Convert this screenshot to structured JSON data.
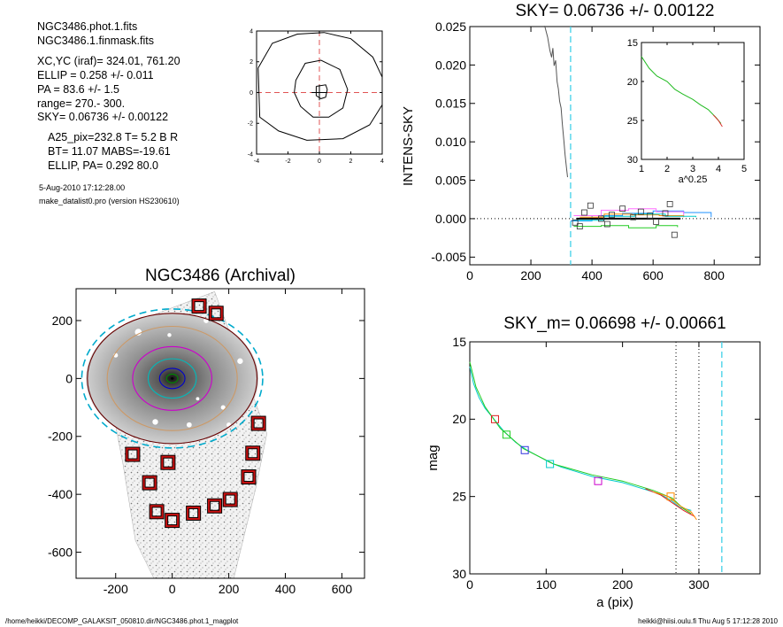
{
  "info": {
    "files": [
      "NGC3486.phot.1.fits",
      "NGC3486.1.finmask.fits"
    ],
    "params": [
      "XC,YC (iraf)=    324.01, 761.20",
      "ELLIP = 0.258 +/- 0.011",
      "PA    =  83.6 +/-   1.5",
      "range=  270.-  300.",
      "SKY= 0.06736 +/- 0.00122"
    ],
    "derived": [
      "A25_pix=232.8   T= 5.2  B R",
      "BT=  11.07    MABS=-19.61",
      "ELLIP, PA= 0.292   80.0"
    ],
    "date": "5-Aug-2010 17:12:28.00",
    "program": "make_datalist0.pro (version HS230610)"
  },
  "footer": {
    "left": "/home/heikki/DECOMP_GALAKSIT_050810.dir/NGC3486.phot.1_magplot",
    "right": "heikki@hiisi.oulu.fi  Thu Aug  5 17:12:28 2010"
  },
  "chart_data": [
    {
      "id": "contour",
      "type": "contour",
      "xlim": [
        -4,
        4
      ],
      "ylim": [
        -4,
        4
      ],
      "xticks": [
        "-4",
        "-2",
        "0",
        "2",
        "4"
      ],
      "yticks": [
        "4",
        "2",
        "0",
        "-2",
        "-4"
      ],
      "xtick_values": [
        -4,
        -2,
        0,
        2,
        4
      ],
      "ytick_values": [
        4,
        2,
        0,
        -2,
        -4
      ],
      "contours": [
        [
          [
            -3.9,
            1.6
          ],
          [
            -3.0,
            3.2
          ],
          [
            -1.4,
            3.8
          ],
          [
            0.3,
            3.9
          ],
          [
            2.0,
            3.5
          ],
          [
            3.4,
            2.3
          ],
          [
            4.0,
            1.0
          ],
          [
            4.0,
            -0.8
          ],
          [
            3.2,
            -2.1
          ],
          [
            1.5,
            -3.0
          ],
          [
            -0.8,
            -3.1
          ],
          [
            -2.6,
            -2.5
          ],
          [
            -3.8,
            -1.6
          ]
        ],
        [
          [
            -1.5,
            0.8
          ],
          [
            -0.9,
            1.9
          ],
          [
            0.1,
            2.1
          ],
          [
            1.3,
            1.5
          ],
          [
            1.8,
            0.2
          ],
          [
            1.5,
            -1.0
          ],
          [
            0.6,
            -1.6
          ],
          [
            -0.4,
            -1.6
          ],
          [
            -1.2,
            -0.9
          ],
          [
            -1.6,
            0.0
          ]
        ],
        [
          [
            -0.2,
            0.4
          ],
          [
            0.4,
            0.5
          ],
          [
            0.5,
            0.2
          ],
          [
            0.4,
            -0.3
          ],
          [
            0.1,
            -0.4
          ],
          [
            -0.2,
            -0.2
          ]
        ]
      ]
    },
    {
      "id": "intens",
      "type": "line",
      "title": "SKY= 0.06736 +/- 0.00122",
      "ylabel": "INTENS-SKY",
      "xlim": [
        0,
        950
      ],
      "ylim": [
        -0.006,
        0.025
      ],
      "xticks": [
        "0",
        "200",
        "400",
        "600",
        "800"
      ],
      "xtick_values": [
        0,
        200,
        400,
        600,
        800
      ],
      "yticks": [
        "0.025",
        "0.020",
        "0.015",
        "0.010",
        "0.005",
        "0.000",
        "-0.005"
      ],
      "ytick_values": [
        0.025,
        0.02,
        0.015,
        0.01,
        0.005,
        0.0,
        -0.005
      ],
      "sky_line_x": 330,
      "profile": [
        [
          245,
          0.0251
        ],
        [
          255,
          0.0236
        ],
        [
          262,
          0.0219
        ],
        [
          268,
          0.021
        ],
        [
          272,
          0.0222
        ],
        [
          276,
          0.0199
        ],
        [
          281,
          0.0206
        ],
        [
          286,
          0.0178
        ],
        [
          290,
          0.0169
        ],
        [
          294,
          0.0153
        ],
        [
          299,
          0.0144
        ],
        [
          303,
          0.0123
        ],
        [
          308,
          0.0102
        ],
        [
          312,
          0.0083
        ],
        [
          317,
          0.0065
        ],
        [
          320,
          0.0054
        ]
      ],
      "squares": [
        [
          345,
          -0.0005
        ],
        [
          360,
          -0.001
        ],
        [
          375,
          0.0008
        ],
        [
          395,
          0.0017
        ],
        [
          430,
          0.0
        ],
        [
          450,
          -0.0007
        ],
        [
          465,
          0.0005
        ],
        [
          500,
          0.0013
        ],
        [
          535,
          0.0002
        ],
        [
          560,
          0.0009
        ],
        [
          590,
          0.0004
        ],
        [
          610,
          -0.0004
        ],
        [
          640,
          0.0007
        ],
        [
          655,
          0.0019
        ],
        [
          670,
          -0.0021
        ]
      ],
      "step_series": [
        {
          "color": "#1e90ff",
          "points": [
            [
              330,
              -0.0003
            ],
            [
              400,
              0.0004
            ],
            [
              500,
              0.0007
            ],
            [
              600,
              0.001
            ],
            [
              700,
              0.0008
            ],
            [
              790,
              0.0002
            ]
          ]
        },
        {
          "color": "#ff6fff",
          "points": [
            [
              340,
              0.0004
            ],
            [
              430,
              0.0011
            ],
            [
              520,
              0.0013
            ],
            [
              610,
              0.0009
            ],
            [
              700,
              0.0004
            ]
          ]
        },
        {
          "color": "#22cc22",
          "points": [
            [
              340,
              -0.001
            ],
            [
              430,
              -0.0009
            ],
            [
              520,
              -0.0012
            ],
            [
              610,
              -0.0009
            ],
            [
              680,
              -0.0011
            ]
          ]
        },
        {
          "color": "#ff8c00",
          "points": [
            [
              360,
              0.0002
            ],
            [
              440,
              0.0006
            ],
            [
              530,
              0.0005
            ],
            [
              620,
              0.0004
            ],
            [
              700,
              0.0002
            ]
          ]
        },
        {
          "color": "#00cccc",
          "points": [
            [
              340,
              -0.0002
            ],
            [
              440,
              0.0003
            ],
            [
              540,
              0.0006
            ],
            [
              640,
              0.0003
            ],
            [
              740,
              0.0002
            ]
          ]
        }
      ],
      "mean_line": [
        [
          350,
          0.0
        ],
        [
          690,
          0.0
        ]
      ]
    },
    {
      "id": "inset",
      "type": "line",
      "xlabel": "a^0.25",
      "xlim": [
        1,
        5
      ],
      "ylim": [
        15,
        30
      ],
      "xticks": [
        "1",
        "2",
        "3",
        "4",
        "5"
      ],
      "xtick_values": [
        1,
        2,
        3,
        4,
        5
      ],
      "yticks": [
        "15",
        "20",
        "25",
        "30"
      ],
      "ytick_values": [
        15,
        20,
        25,
        30
      ],
      "series": [
        {
          "color": "#22bb22",
          "points": [
            [
              1.0,
              16.8
            ],
            [
              1.3,
              18.3
            ],
            [
              1.6,
              19.3
            ],
            [
              2.0,
              20.0
            ],
            [
              2.3,
              21.0
            ],
            [
              2.6,
              21.6
            ],
            [
              3.0,
              22.3
            ],
            [
              3.3,
              23.0
            ],
            [
              3.6,
              23.6
            ],
            [
              3.9,
              24.6
            ],
            [
              4.1,
              25.4
            ]
          ]
        },
        {
          "color": "#e03030",
          "points": [
            [
              3.8,
              24.3
            ],
            [
              4.0,
              25.0
            ],
            [
              4.15,
              25.8
            ]
          ]
        }
      ]
    },
    {
      "id": "image",
      "type": "image",
      "title": "NGC3486 (Archival)",
      "xlim": [
        -340,
        680
      ],
      "ylim": [
        -690,
        310
      ],
      "xticks": [
        "-200",
        "0",
        "200",
        "400",
        "600"
      ],
      "xtick_values": [
        -200,
        0,
        200,
        400,
        600
      ],
      "yticks": [
        "200",
        "0",
        "-200",
        "-400",
        "-600"
      ],
      "ytick_values": [
        200,
        0,
        -200,
        -400,
        -600
      ],
      "ellipses": [
        {
          "rx": 20,
          "ry": 15,
          "color": "#008800"
        },
        {
          "rx": 45,
          "ry": 35,
          "color": "#0000cc"
        },
        {
          "rx": 85,
          "ry": 68,
          "color": "#00bbbb"
        },
        {
          "rx": 140,
          "ry": 110,
          "color": "#cc00cc"
        },
        {
          "rx": 230,
          "ry": 180,
          "color": "#cc9966"
        },
        {
          "rx": 300,
          "ry": 225,
          "color": "#660000"
        },
        {
          "rx": 320,
          "ry": 240,
          "color": "#00aacc",
          "dashed": true
        }
      ],
      "sky_boxes": [
        [
          95,
          250
        ],
        [
          155,
          225
        ],
        [
          305,
          -155
        ],
        [
          -140,
          -262
        ],
        [
          -15,
          -290
        ],
        [
          285,
          -258
        ],
        [
          -80,
          -360
        ],
        [
          270,
          -340
        ],
        [
          -55,
          -460
        ],
        [
          75,
          -465
        ],
        [
          150,
          -440
        ],
        [
          205,
          -418
        ],
        [
          0,
          -490
        ]
      ]
    },
    {
      "id": "magprof",
      "type": "line",
      "title": "SKY_m=  0.06698 +/- 0.00661",
      "xlabel": "a (pix)",
      "ylabel": "mag",
      "xlim": [
        0,
        380
      ],
      "ylim": [
        15,
        30
      ],
      "xticks": [
        "0",
        "100",
        "200",
        "300"
      ],
      "xtick_values": [
        0,
        100,
        200,
        300
      ],
      "yticks": [
        "15",
        "20",
        "25",
        "30"
      ],
      "ytick_values": [
        15,
        20,
        25,
        30
      ],
      "range_lines": [
        270,
        300
      ],
      "sky_line_x": 330,
      "series": [
        {
          "color": "#00cccc",
          "points": [
            [
              0,
              16.6
            ],
            [
              5,
              17.7
            ],
            [
              12,
              18.6
            ],
            [
              20,
              19.3
            ],
            [
              30,
              19.9
            ],
            [
              45,
              20.8
            ],
            [
              60,
              21.5
            ],
            [
              75,
              22.0
            ],
            [
              90,
              22.4
            ],
            [
              105,
              22.8
            ],
            [
              120,
              23.1
            ],
            [
              140,
              23.4
            ],
            [
              160,
              23.7
            ],
            [
              180,
              23.9
            ],
            [
              200,
              24.1
            ],
            [
              220,
              24.4
            ],
            [
              240,
              24.7
            ],
            [
              255,
              25.0
            ],
            [
              265,
              25.3
            ],
            [
              275,
              25.7
            ],
            [
              290,
              25.9
            ]
          ]
        },
        {
          "color": "#22cc22",
          "points": [
            [
              0,
              16.3
            ],
            [
              8,
              17.9
            ],
            [
              20,
              19.2
            ],
            [
              40,
              20.6
            ],
            [
              70,
              21.9
            ],
            [
              110,
              22.9
            ],
            [
              160,
              23.6
            ],
            [
              200,
              24.0
            ],
            [
              240,
              24.6
            ],
            [
              265,
              25.1
            ],
            [
              280,
              25.8
            ],
            [
              290,
              26.1
            ]
          ]
        },
        {
          "color": "#dd2222",
          "points": [
            [
              230,
              24.5
            ],
            [
              250,
              24.9
            ],
            [
              265,
              25.4
            ],
            [
              280,
              25.9
            ],
            [
              295,
              26.3
            ]
          ]
        },
        {
          "color": "#ff8c00",
          "points": [
            [
              240,
              24.7
            ],
            [
              260,
              25.0
            ],
            [
              275,
              25.6
            ],
            [
              290,
              26.0
            ],
            [
              297,
              26.5
            ]
          ]
        }
      ],
      "squares": [
        {
          "x": 33,
          "y": 20.0,
          "color": "#dd2222"
        },
        {
          "x": 48,
          "y": 21.0,
          "color": "#22cc22"
        },
        {
          "x": 72,
          "y": 22.0,
          "color": "#3333dd"
        },
        {
          "x": 105,
          "y": 22.9,
          "color": "#00cccc"
        },
        {
          "x": 168,
          "y": 24.0,
          "color": "#cc00cc"
        },
        {
          "x": 263,
          "y": 25.0,
          "color": "#ff8c00"
        }
      ]
    }
  ]
}
